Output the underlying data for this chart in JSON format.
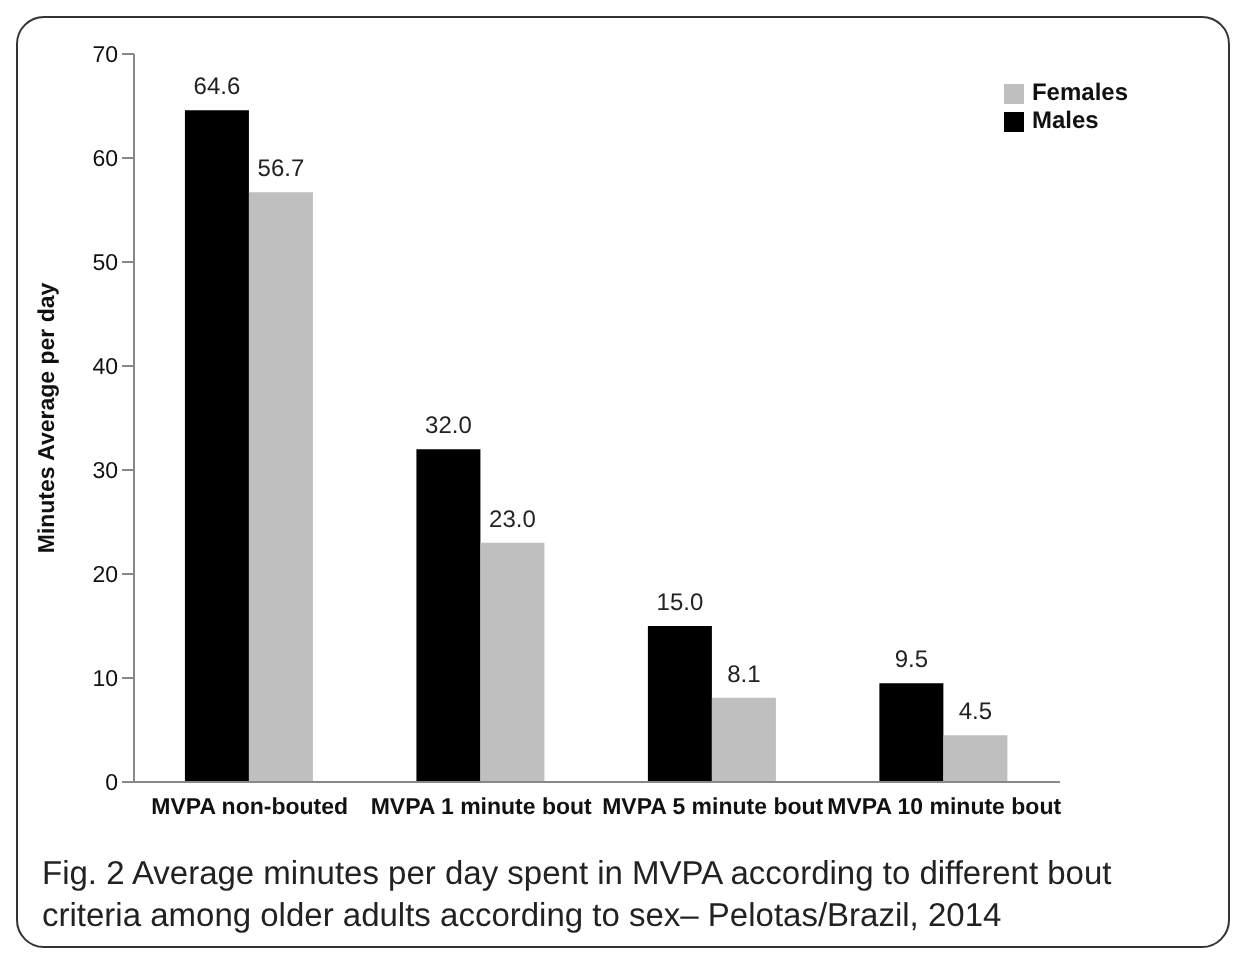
{
  "chart_data": {
    "type": "bar",
    "ylabel": "Minutes Average  per day",
    "categories": [
      "MVPA non-bouted",
      "MVPA 1 minute bout",
      "MVPA 5 minute bout",
      "MVPA 10 minute bout"
    ],
    "series": [
      {
        "name": "Males",
        "color": "#000000",
        "values": [
          64.6,
          32.0,
          15.0,
          9.5
        ],
        "value_labels": [
          "64.6",
          "32.0",
          "15.0",
          "9.5"
        ]
      },
      {
        "name": "Females",
        "color": "#bfbfbf",
        "values": [
          56.7,
          23.0,
          8.1,
          4.5
        ],
        "value_labels": [
          "56.7",
          "23.0",
          "8.1",
          "4.5"
        ]
      }
    ],
    "ylim": [
      0,
      70
    ],
    "yticks": [
      0,
      10,
      20,
      30,
      40,
      50,
      60,
      70
    ],
    "grid": false,
    "legend": "top right",
    "annotations": [
      "Fig. 2 Average minutes per day spent in MVPA according to different bout criteria among older adults according to sex– Pelotas/Brazil, 2014"
    ]
  }
}
